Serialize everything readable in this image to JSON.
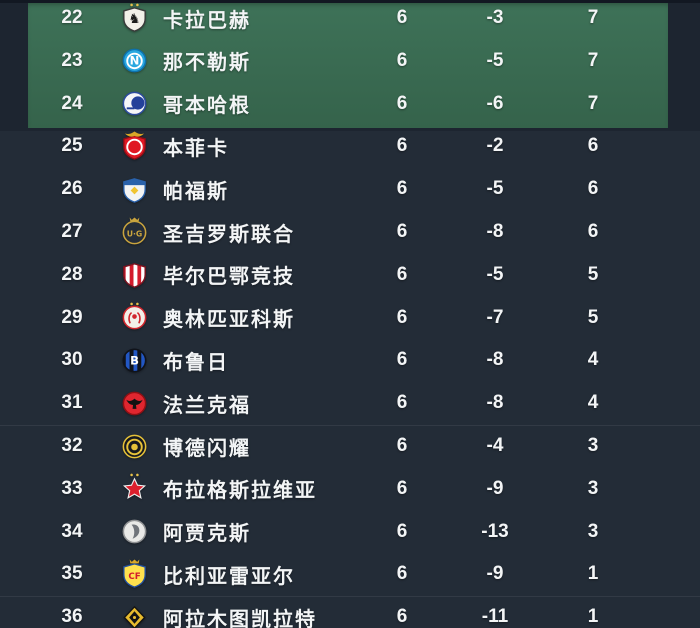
{
  "colors": {
    "page_top": "#1d2530",
    "rows_bg": "#232c37",
    "qualification_zone_top": "#3e7258",
    "qualification_zone_bottom": "#35634b",
    "top_strip": "#121822",
    "text": "#f3f5f6",
    "divider": "rgba(255,255,255,0.07)"
  },
  "table": {
    "rows": [
      {
        "pos": "22",
        "team": "卡拉巴赫",
        "played": "6",
        "gd": "-3",
        "pts": "7",
        "zone": "green",
        "divider_after": false,
        "logo": {
          "shape": "shield",
          "bg": "#f2f0e9",
          "border": "#3a3a3a",
          "glyph": "♞",
          "glyph_color": "#1c1c1c",
          "gsize": "14",
          "top": "stars",
          "top_color": "#e8c24a"
        }
      },
      {
        "pos": "23",
        "team": "那不勒斯",
        "played": "6",
        "gd": "-5",
        "pts": "7",
        "zone": "green",
        "divider_after": false,
        "logo": {
          "shape": "circle",
          "bg": "#29a7df",
          "border": "#0e72ad",
          "ring": "#ffffff",
          "glyph": "N",
          "glyph_color": "#ffffff",
          "gsize": "12"
        }
      },
      {
        "pos": "24",
        "team": "哥本哈根",
        "played": "6",
        "gd": "-6",
        "pts": "7",
        "zone": "green",
        "divider_after": false,
        "logo": {
          "shape": "circle",
          "bg": "#f5f6f8",
          "border": "#2c4b9e",
          "mark": "half",
          "mark_color": "#24419a"
        }
      },
      {
        "pos": "25",
        "team": "本菲卡",
        "played": "6",
        "gd": "-2",
        "pts": "6",
        "zone": "dark",
        "divider_after": false,
        "logo": {
          "shape": "shield",
          "bg": "#e01823",
          "border": "#8e0e16",
          "ring": "#ffffff",
          "top": "eagle",
          "top_color": "#d9a727"
        }
      },
      {
        "pos": "26",
        "team": "帕福斯",
        "played": "6",
        "gd": "-5",
        "pts": "6",
        "zone": "dark",
        "divider_after": false,
        "logo": {
          "shape": "shield",
          "bg": "#f3f4f4",
          "border": "#2a62ab",
          "band": "#2a62ab",
          "mark": "gem",
          "mark_color": "#f0c431"
        }
      },
      {
        "pos": "27",
        "team": "圣吉罗斯联合",
        "played": "6",
        "gd": "-8",
        "pts": "6",
        "zone": "dark",
        "divider_after": false,
        "logo": {
          "shape": "circle",
          "bg": "#242c38",
          "border": "#c9a43e",
          "glyph": "U·G",
          "glyph_color": "#c9a43e",
          "gsize": "8",
          "top": "crown",
          "top_color": "#c9a43e"
        }
      },
      {
        "pos": "28",
        "team": "毕尔巴鄂竞技",
        "played": "6",
        "gd": "-5",
        "pts": "5",
        "zone": "dark",
        "divider_after": false,
        "logo": {
          "shape": "shield",
          "bg": "#ffffff",
          "border": "#7a1420",
          "stripes": [
            "#d31b2c",
            "#ffffff"
          ]
        }
      },
      {
        "pos": "29",
        "team": "奥林匹亚科斯",
        "played": "6",
        "gd": "-7",
        "pts": "5",
        "zone": "dark",
        "divider_after": false,
        "logo": {
          "shape": "circle",
          "bg": "#f2efe8",
          "border": "#d0252c",
          "mark": "laurel",
          "mark_color": "#d0252c",
          "top": "stars",
          "top_color": "#e8c24a"
        }
      },
      {
        "pos": "30",
        "team": "布鲁日",
        "played": "6",
        "gd": "-8",
        "pts": "4",
        "zone": "dark",
        "divider_after": false,
        "logo": {
          "shape": "circle",
          "bg": "#10131a",
          "border": "#10131a",
          "stripes": [
            "#10131a",
            "#2257c4"
          ],
          "glyph": "B",
          "glyph_color": "#ffffff",
          "gsize": "12"
        }
      },
      {
        "pos": "31",
        "team": "法兰克福",
        "played": "6",
        "gd": "-8",
        "pts": "4",
        "zone": "dark",
        "divider_after": true,
        "logo": {
          "shape": "circle",
          "bg": "#e0262f",
          "border": "#8e1014",
          "mark": "eagle",
          "mark_color": "#121212"
        }
      },
      {
        "pos": "32",
        "team": "博德闪耀",
        "played": "6",
        "gd": "-4",
        "pts": "3",
        "zone": "dark",
        "divider_after": false,
        "logo": {
          "shape": "circle",
          "bg": "#16191f",
          "border": "#e6c239",
          "ring": "#e6c239",
          "mark": "sun",
          "mark_color": "#e6c239"
        }
      },
      {
        "pos": "33",
        "team": "布拉格斯拉维亚",
        "played": "6",
        "gd": "-9",
        "pts": "3",
        "zone": "dark",
        "divider_after": false,
        "logo": {
          "shape": "star",
          "bg": "#dd1f2d",
          "border": "#eeeeee",
          "top": "stars",
          "top_color": "#e8c24a"
        }
      },
      {
        "pos": "34",
        "team": "阿贾克斯",
        "played": "6",
        "gd": "-13",
        "pts": "3",
        "zone": "dark",
        "divider_after": false,
        "logo": {
          "shape": "circle",
          "bg": "#e9e9e7",
          "border": "#8f9193",
          "mark": "face",
          "mark_color": "#70747a"
        }
      },
      {
        "pos": "35",
        "team": "比利亚雷亚尔",
        "played": "6",
        "gd": "-9",
        "pts": "1",
        "zone": "dark",
        "divider_after": true,
        "logo": {
          "shape": "shield",
          "bg": "#ffe14e",
          "border": "#24509e",
          "glyph": "CF",
          "glyph_color": "#d31b2c",
          "gsize": "9",
          "top": "crown",
          "top_color": "#d9a727"
        }
      },
      {
        "pos": "36",
        "team": "阿拉木图凯拉特",
        "played": "6",
        "gd": "-11",
        "pts": "1",
        "zone": "dark",
        "divider_after": false,
        "logo": {
          "shape": "diamond",
          "bg": "#e7bb2e",
          "border": "#141414",
          "mark": "kdiamond",
          "mark_color": "#141414"
        }
      }
    ]
  }
}
